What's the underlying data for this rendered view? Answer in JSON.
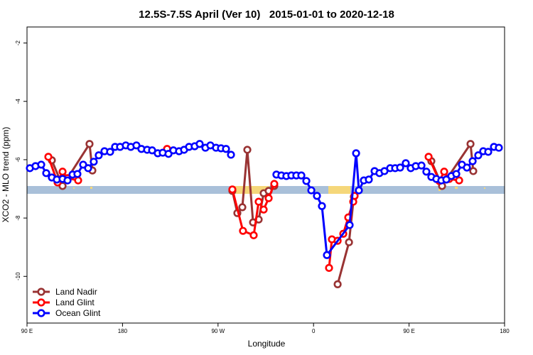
{
  "chart_data": {
    "type": "line",
    "title": "12.5S-7.5S April (Ver 10)   2015-01-01 to 2020-12-18",
    "xlabel": "Longitude",
    "ylabel": "XCO2 - MLO trend (ppm)",
    "xlim": [
      90,
      540
    ],
    "ylim": [
      -11.6,
      -1.45
    ],
    "xticks": [
      {
        "value": 90,
        "label": "90 E"
      },
      180,
      {
        "value": 270,
        "label": "90 W"
      },
      {
        "value": 360,
        "label": "0"
      },
      {
        "value": 450,
        "label": "90 E"
      },
      {
        "value": 540,
        "label": "180"
      }
    ],
    "yticks": [
      -10,
      -8,
      -6,
      -4,
      -2
    ],
    "grid": false,
    "legend": "lower left",
    "series": [
      {
        "name": "Land Nadir",
        "color": "#993333",
        "x": [
          113.4,
          123.5,
          148.9,
          151.6,
          null,
          283.5,
          288.2,
          292.9,
          297.6,
          303.0,
          308.3,
          313.0,
          317.7,
          323.0,
          null,
          382.7,
          393.4,
          398.0,
          null,
          471.0,
          481.1,
          507.9,
          510.5
        ],
        "values": [
          -6.02,
          -6.9,
          -5.46,
          -6.37,
          null,
          -7.07,
          -7.83,
          -7.63,
          -5.66,
          -8.15,
          -8.05,
          -7.15,
          -7.07,
          -6.9,
          null,
          -10.27,
          -8.83,
          -7.27,
          null,
          -6.05,
          -6.9,
          -5.46,
          -6.39
        ]
      },
      {
        "name": "Land Glint",
        "color": "#ff0000",
        "x": [
          110.1,
          118.8,
          123.5,
          128.2,
          138.2,
          null,
          222.0,
          null,
          283.5,
          293.5,
          303.6,
          308.3,
          313.0,
          317.7,
          323.0,
          null,
          374.6,
          377.3,
          382.7,
          388.0,
          392.7,
          397.4,
          398.7,
          null,
          468.4,
          478.5,
          483.1,
          487.8,
          497.2
        ],
        "values": [
          -5.9,
          -6.78,
          -6.41,
          -6.63,
          -6.71,
          null,
          -5.63,
          null,
          -7.02,
          -8.44,
          -8.59,
          -7.44,
          -7.71,
          -7.32,
          -6.83,
          null,
          -9.71,
          -8.73,
          -8.78,
          -8.54,
          -7.98,
          -7.44,
          -7.24,
          null,
          -5.9,
          -6.73,
          -6.41,
          -6.66,
          -6.71
        ]
      },
      {
        "name": "Ocean Glint",
        "color": "#0000ff",
        "x": [
          92.7,
          98.0,
          103.4,
          108.1,
          113.4,
          118.1,
          123.5,
          128.2,
          132.9,
          137.5,
          142.9,
          147.6,
          152.9,
          157.6,
          163.0,
          168.3,
          173.0,
          177.7,
          183.1,
          187.8,
          193.1,
          197.8,
          203.2,
          207.9,
          213.2,
          217.9,
          223.3,
          227.9,
          233.3,
          238.0,
          242.7,
          248.0,
          252.7,
          258.1,
          262.8,
          268.1,
          272.8,
          277.5,
          282.2,
          null,
          325.0,
          329.7,
          334.4,
          339.1,
          343.8,
          348.5,
          353.2,
          357.9,
          363.2,
          367.9,
          372.6,
          394.0,
          400.1,
          402.7,
          407.4,
          412.1,
          417.5,
          422.1,
          426.8,
          432.2,
          436.9,
          441.6,
          446.9,
          451.6,
          456.3,
          461.7,
          466.3,
          471.0,
          475.7,
          480.4,
          485.1,
          489.8,
          494.5,
          499.8,
          504.5,
          509.9,
          515.2,
          519.9,
          524.6,
          530.0,
          534.6
        ],
        "values": [
          -6.29,
          -6.22,
          -6.17,
          -6.46,
          -6.61,
          -6.68,
          -6.66,
          -6.71,
          -6.51,
          -6.49,
          -6.17,
          -6.29,
          -6.07,
          -5.85,
          -5.71,
          -5.73,
          -5.56,
          -5.56,
          -5.51,
          -5.56,
          -5.51,
          -5.63,
          -5.66,
          -5.68,
          -5.78,
          -5.76,
          -5.8,
          -5.68,
          -5.71,
          -5.66,
          -5.56,
          -5.54,
          -5.46,
          -5.59,
          -5.51,
          -5.59,
          -5.61,
          -5.63,
          -5.83,
          null,
          -6.51,
          -6.54,
          -6.56,
          -6.54,
          -6.54,
          -6.54,
          -6.73,
          -7.05,
          -7.24,
          -7.59,
          -9.27,
          -8.24,
          -5.78,
          -7.05,
          -6.71,
          -6.68,
          -6.39,
          -6.46,
          -6.39,
          -6.29,
          -6.29,
          -6.27,
          -6.12,
          -6.29,
          -6.22,
          -6.2,
          -6.41,
          -6.59,
          -6.66,
          -6.71,
          -6.68,
          -6.56,
          -6.49,
          -6.17,
          -6.27,
          -6.05,
          -5.85,
          -5.71,
          -5.73,
          -5.56,
          -5.59
        ]
      }
    ]
  }
}
